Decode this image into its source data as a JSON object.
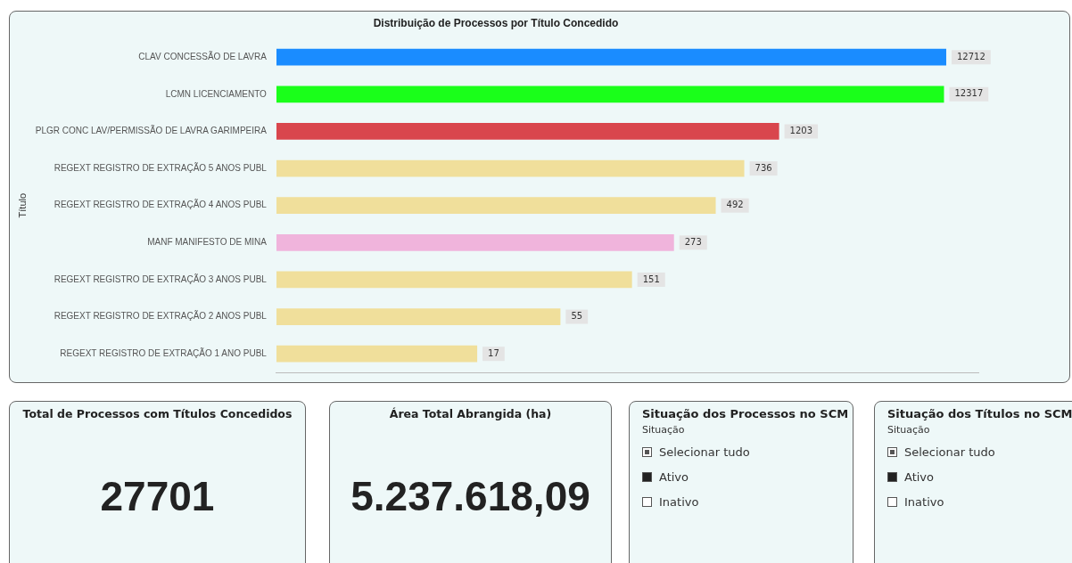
{
  "chart_data": [
    {
      "type": "bar",
      "orientation": "horizontal",
      "title": "Distribuição de Processos por Título Concedido",
      "ylabel": "Título",
      "categories": [
        "CLAV CONCESSÃO DE LAVRA",
        "LCMN LICENCIAMENTO",
        "PLGR CONC LAV/PERMISSÃO DE LAVRA GARIMPEIRA",
        "REGEXT REGISTRO DE EXTRAÇÃO 5 ANOS PUBL",
        "REGEXT REGISTRO DE EXTRAÇÃO 4 ANOS PUBL",
        "MANF MANIFESTO DE MINA",
        "REGEXT REGISTRO DE EXTRAÇÃO 3 ANOS PUBL",
        "REGEXT REGISTRO DE EXTRAÇÃO 2 ANOS PUBL",
        "REGEXT REGISTRO DE EXTRAÇÃO 1 ANO PUBL"
      ],
      "values": [
        12712,
        12317,
        1203,
        736,
        492,
        273,
        151,
        55,
        17
      ],
      "colors": [
        "#1a8cff",
        "#1aff1a",
        "#d9464d",
        "#f0df9b",
        "#f0df9b",
        "#f0b4dc",
        "#f0df9b",
        "#f0df9b",
        "#f0df9b"
      ],
      "log": "x",
      "xlim": [
        1,
        20000
      ],
      "data_labels": true,
      "legend": false,
      "tick_labels": "y"
    },
    {
      "type": "other",
      "title": "Total de Processos com Títulos Concedidos",
      "annotations": [
        "27701"
      ]
    },
    {
      "type": "other",
      "title": "Área Total Abrangida (ha)",
      "annotations": [
        "5.237.618,09"
      ]
    },
    {
      "type": "other",
      "title": "Situação dos Processos no SCM",
      "annotations": [
        "Situação",
        "Selecionar tudo",
        "Ativo",
        "Inativo"
      ]
    },
    {
      "type": "other",
      "title": "Situação dos Títulos no SCM",
      "annotations": [
        "Situação",
        "Selecionar tudo",
        "Ativo",
        "Inativo"
      ]
    }
  ]
}
